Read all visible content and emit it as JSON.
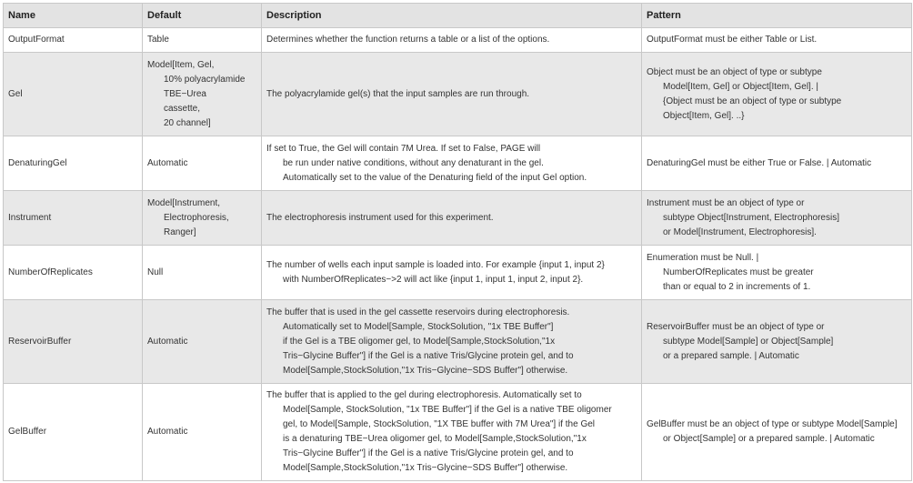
{
  "table": {
    "header": [
      "Name",
      "Default",
      "Description",
      "Pattern"
    ],
    "rows": [
      [
        [
          "OutputFormat"
        ],
        [
          "Table"
        ],
        [
          "Determines whether the function returns a table or a list of the options."
        ],
        [
          "OutputFormat must be either Table or List."
        ]
      ],
      [
        [
          "Gel"
        ],
        [
          "Model[Item, Gel,",
          "10% polyacrylamide",
          "TBE−Urea",
          "cassette,",
          "20 channel]"
        ],
        [
          "The polyacrylamide gel(s) that the input samples are run through."
        ],
        [
          "Object must be an object of type or subtype",
          "Model[Item, Gel] or Object[Item, Gel]. |",
          "{Object must be an object of type or subtype",
          "Object[Item, Gel]. ..}"
        ]
      ],
      [
        [
          "DenaturingGel"
        ],
        [
          "Automatic"
        ],
        [
          "If set to True, the Gel will contain 7M Urea. If set to False, PAGE will",
          "be run under native conditions, without any denaturant in the gel.",
          "Automatically set to the value of the Denaturing field of the input Gel option."
        ],
        [
          "DenaturingGel must be either True or False. | Automatic"
        ]
      ],
      [
        [
          "Instrument"
        ],
        [
          "Model[Instrument,",
          "Electrophoresis,",
          "Ranger]"
        ],
        [
          "The electrophoresis instrument used for this experiment."
        ],
        [
          "Instrument must be an object of type or",
          "subtype Object[Instrument, Electrophoresis]",
          "or Model[Instrument, Electrophoresis]."
        ]
      ],
      [
        [
          "NumberOfReplicates"
        ],
        [
          "Null"
        ],
        [
          "The number of wells each input sample is loaded into. For example {input 1, input 2}",
          "with NumberOfReplicates−>2 will act like {input 1, input 1, input 2, input 2}."
        ],
        [
          "Enumeration must be Null. |",
          "NumberOfReplicates must be greater",
          "than or equal to 2 in increments of 1."
        ]
      ],
      [
        [
          "ReservoirBuffer"
        ],
        [
          "Automatic"
        ],
        [
          "The buffer that is used in the gel cassette reservoirs during electrophoresis.",
          "Automatically set to Model[Sample, StockSolution, \"1x TBE Buffer\"]",
          "if the Gel is a TBE oligomer gel, to Model[Sample,StockSolution,\"1x",
          "Tris−Glycine Buffer\"] if the Gel is a native Tris/Glycine protein gel, and to",
          "Model[Sample,StockSolution,\"1x Tris−Glycine−SDS Buffer\"] otherwise."
        ],
        [
          "ReservoirBuffer must be an object of type or",
          "subtype Model[Sample] or Object[Sample]",
          "or a prepared sample. | Automatic"
        ]
      ],
      [
        [
          "GelBuffer"
        ],
        [
          "Automatic"
        ],
        [
          "The buffer that is applied to the gel during electrophoresis.  Automatically set to",
          "Model[Sample, StockSolution, \"1x TBE Buffer\"] if the Gel is a native TBE oligomer",
          "gel, to Model[Sample, StockSolution, \"1X TBE buffer with 7M Urea\"] if the Gel",
          "is a denaturing TBE−Urea oligomer gel, to Model[Sample,StockSolution,\"1x",
          "Tris−Glycine Buffer\"] if the Gel is a native Tris/Glycine protein gel, and to",
          "Model[Sample,StockSolution,\"1x Tris−Glycine−SDS Buffer\"] otherwise."
        ],
        [
          "GelBuffer must be an object of type or subtype Model[Sample]",
          "or Object[Sample] or a prepared sample. | Automatic"
        ]
      ]
    ]
  }
}
